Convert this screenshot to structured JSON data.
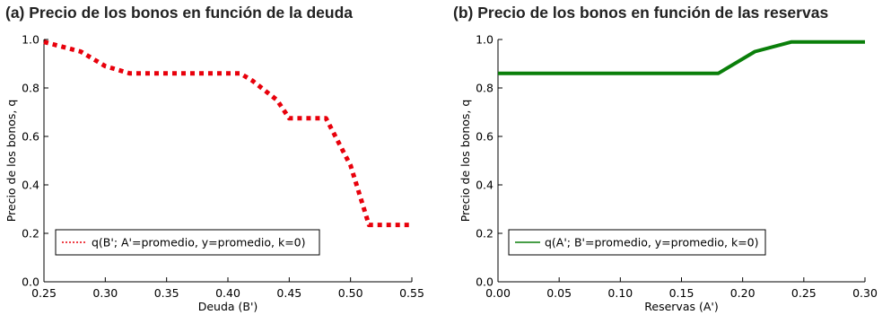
{
  "chart_data": [
    {
      "type": "line",
      "title": "(a) Precio de los bonos en función de la deuda",
      "xlabel": "Deuda (B')",
      "ylabel": "Precio de los bonos, q",
      "xlim": [
        0.25,
        0.55
      ],
      "ylim": [
        0.0,
        1.0
      ],
      "xticks": [
        "0.25",
        "0.30",
        "0.35",
        "0.40",
        "0.45",
        "0.50",
        "0.55"
      ],
      "yticks": [
        "0.0",
        "0.2",
        "0.4",
        "0.6",
        "0.8",
        "1.0"
      ],
      "grid": false,
      "legend_position": "bottom-left",
      "series": [
        {
          "name": "q(B'; A'=promedio, y=promedio, k=0)",
          "color": "#e8000b",
          "style": "dotted",
          "x": [
            0.25,
            0.28,
            0.3,
            0.32,
            0.41,
            0.42,
            0.44,
            0.45,
            0.48,
            0.5,
            0.515,
            0.55
          ],
          "y": [
            0.99,
            0.95,
            0.89,
            0.86,
            0.86,
            0.83,
            0.75,
            0.675,
            0.675,
            0.48,
            0.235,
            0.235
          ]
        }
      ]
    },
    {
      "type": "line",
      "title": "(b) Precio de los bonos en función de las reservas",
      "xlabel": "Reservas (A')",
      "ylabel": "Precio de los bonos, q",
      "xlim": [
        0.0,
        0.3
      ],
      "ylim": [
        0.0,
        1.0
      ],
      "xticks": [
        "0.00",
        "0.05",
        "0.10",
        "0.15",
        "0.20",
        "0.25",
        "0.30"
      ],
      "yticks": [
        "0.0",
        "0.2",
        "0.4",
        "0.6",
        "0.8",
        "1.0"
      ],
      "grid": false,
      "legend_position": "bottom-left",
      "series": [
        {
          "name": "q(A'; B'=promedio, y=promedio, k=0)",
          "color": "#0a7f0a",
          "style": "solid",
          "x": [
            0.0,
            0.18,
            0.21,
            0.24,
            0.3
          ],
          "y": [
            0.86,
            0.86,
            0.95,
            0.99,
            0.99
          ]
        }
      ]
    }
  ]
}
